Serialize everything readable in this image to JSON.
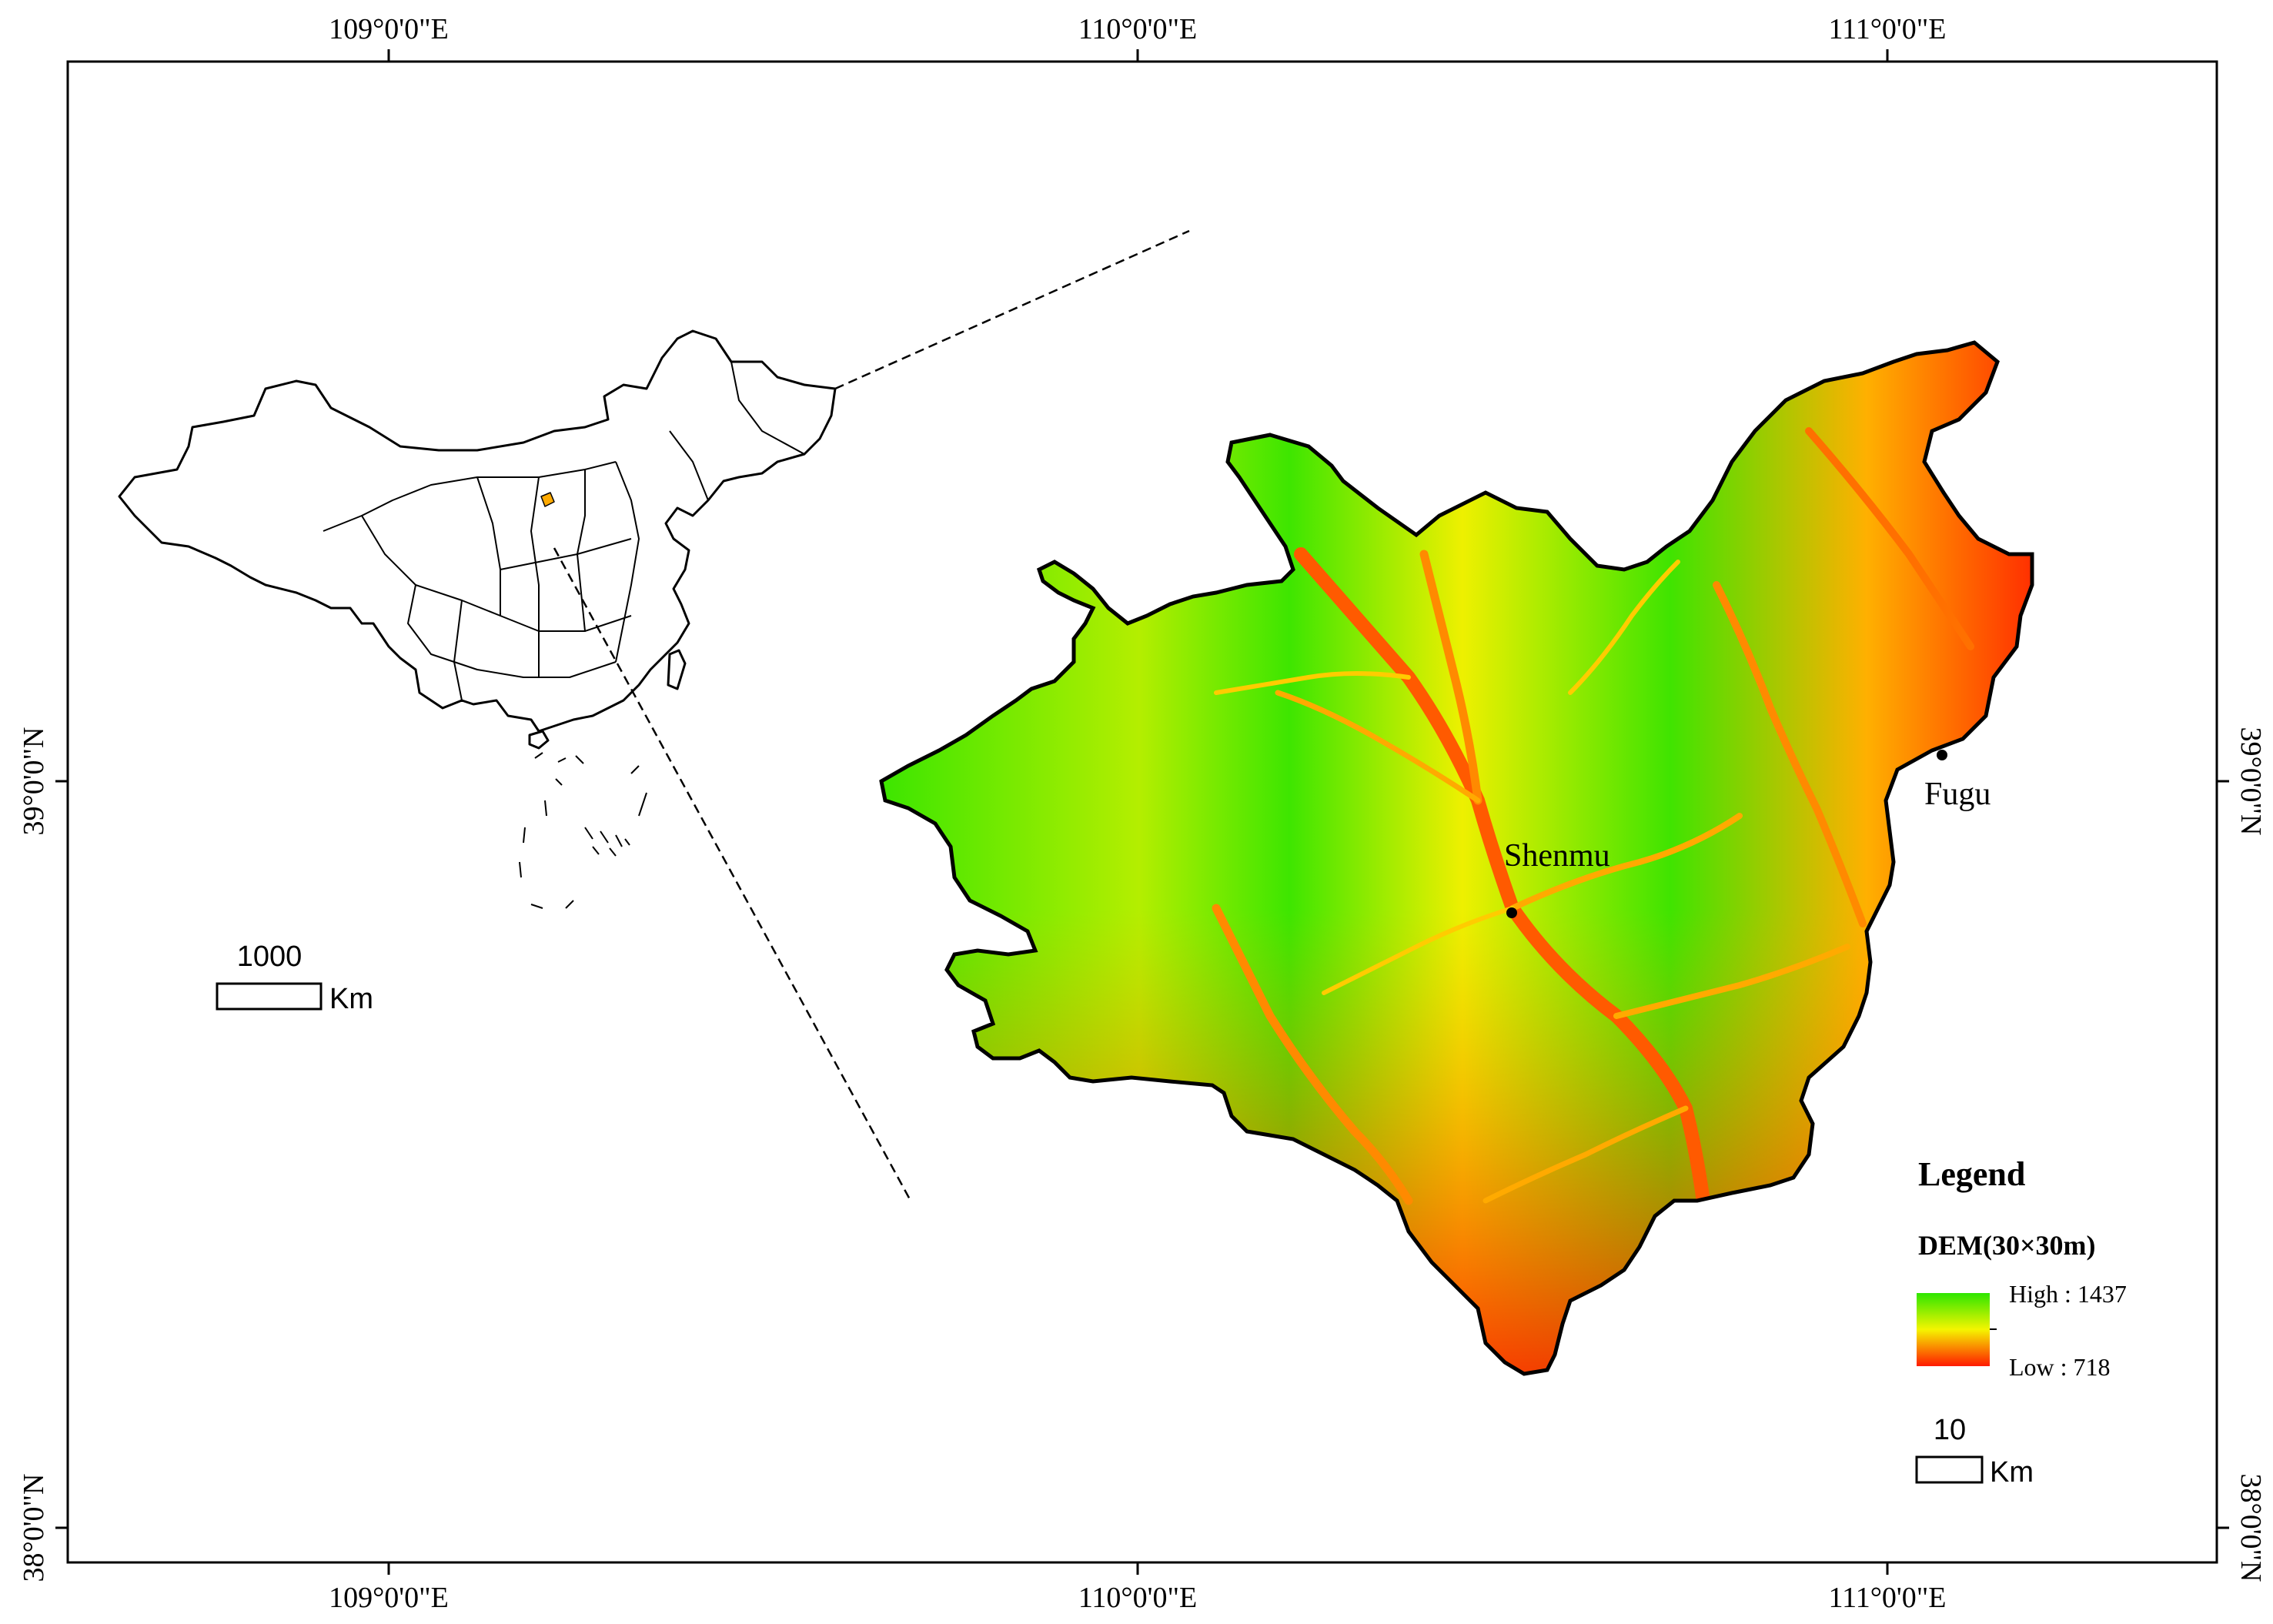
{
  "graticule": {
    "top_lon_labels": [
      "109°0'0\"E",
      "110°0'0\"E",
      "111°0'0\"E"
    ],
    "bottom_lon_labels": [
      "109°0'0\"E",
      "110°0'0\"E",
      "111°0'0\"E"
    ],
    "left_lat_labels": [
      "39°0'0\"N",
      "38°0'0\"N"
    ],
    "right_lat_labels": [
      "39°0'0\"N",
      "38°0'0\"N"
    ]
  },
  "places": {
    "shenmu": "Shenmu",
    "fugu": "Fugu"
  },
  "legend": {
    "title": "Legend",
    "dem_title": "DEM(30×30m)",
    "high_label": "High : 1437",
    "low_label": "Low : 718",
    "high_value": 1437,
    "low_value": 718,
    "colors": {
      "high": "#2ee600",
      "mid": "#f5f500",
      "low": "#ff1a00"
    }
  },
  "inset_scale_bar": {
    "value": "1000",
    "unit": "Km"
  },
  "main_scale_bar": {
    "value": "10",
    "unit": "Km"
  }
}
